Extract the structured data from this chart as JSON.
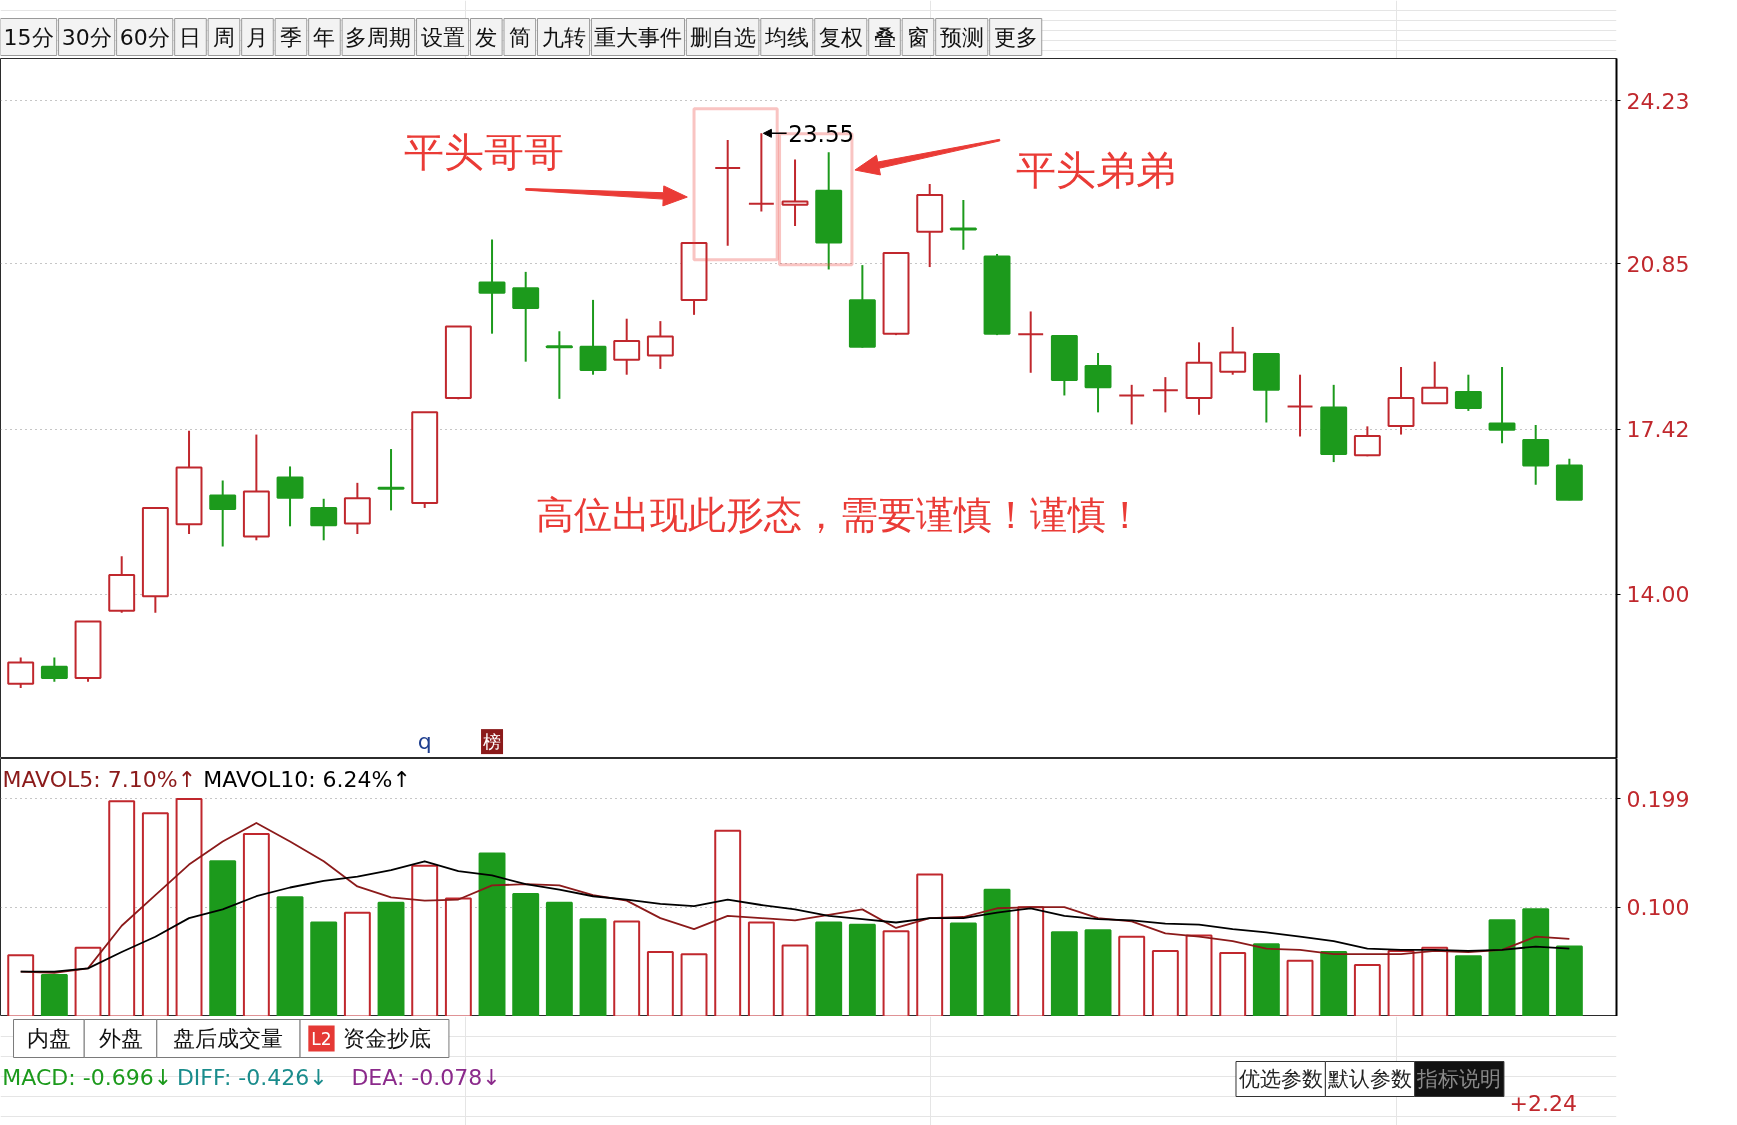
{
  "chart_data": [
    {
      "type": "other",
      "annotations": [
        "15分",
        "30分",
        "60分",
        "日",
        "周",
        "月",
        "季",
        "年",
        "多周期",
        "设置",
        "发",
        "简",
        "九转",
        "重大事件",
        "删自选",
        "均线",
        "复权",
        "叠",
        "窗",
        "预测",
        "更多"
      ]
    },
    {
      "type": "candlestick",
      "categories": [
        null,
        null,
        null,
        null,
        null,
        null,
        null,
        null,
        null,
        null,
        null,
        null,
        null,
        null,
        null,
        null,
        null,
        null,
        null,
        null,
        null,
        null,
        null,
        null,
        null,
        null,
        null,
        null,
        null,
        null,
        null,
        null,
        null,
        null,
        null,
        null,
        null,
        null,
        null,
        null,
        null,
        null,
        null,
        null,
        null,
        null,
        null
      ],
      "ohlc": [
        [
          12.15,
          12.69,
          12.06,
          12.59
        ],
        [
          12.5,
          12.69,
          12.19,
          12.27
        ],
        [
          12.27,
          13.44,
          12.19,
          13.44
        ],
        [
          13.66,
          14.79,
          13.62,
          14.4
        ],
        [
          13.96,
          15.79,
          13.62,
          15.79
        ],
        [
          15.45,
          17.39,
          15.25,
          16.63
        ],
        [
          16.05,
          16.36,
          14.99,
          15.77
        ],
        [
          15.2,
          17.31,
          15.12,
          16.13
        ],
        [
          16.42,
          16.65,
          15.41,
          16.0
        ],
        [
          15.79,
          15.98,
          15.12,
          15.43
        ],
        [
          15.47,
          16.31,
          15.25,
          15.99
        ],
        [
          16.21,
          17.01,
          15.74,
          16.19
        ],
        [
          15.89,
          17.77,
          15.79,
          17.77
        ],
        [
          18.07,
          19.55,
          18.04,
          19.55
        ],
        [
          20.46,
          21.35,
          19.4,
          20.25
        ],
        [
          20.34,
          20.68,
          18.82,
          19.93
        ],
        [
          19.14,
          19.45,
          18.05,
          19.12
        ],
        [
          19.13,
          20.1,
          18.55,
          18.65
        ],
        [
          18.86,
          19.71,
          18.55,
          19.25
        ],
        [
          18.95,
          19.66,
          18.67,
          19.34
        ],
        [
          20.1,
          21.28,
          19.79,
          21.28
        ],
        [
          22.83,
          23.41,
          21.22,
          22.83
        ],
        [
          22.09,
          23.55,
          21.93,
          22.09
        ],
        [
          22.07,
          23.01,
          21.63,
          22.14
        ],
        [
          22.36,
          23.16,
          20.73,
          21.29
        ],
        [
          20.09,
          20.82,
          19.11,
          19.13
        ],
        [
          19.4,
          21.07,
          19.37,
          21.07
        ],
        [
          21.51,
          22.5,
          20.78,
          22.27
        ],
        [
          21.58,
          22.17,
          21.14,
          21.56
        ],
        [
          21.0,
          21.05,
          19.37,
          19.4
        ],
        [
          19.39,
          19.86,
          18.59,
          19.39
        ],
        [
          19.35,
          19.35,
          18.12,
          18.44
        ],
        [
          18.73,
          19.0,
          17.77,
          18.29
        ],
        [
          18.12,
          18.34,
          17.52,
          18.12
        ],
        [
          18.23,
          18.5,
          17.77,
          18.23
        ],
        [
          18.07,
          19.22,
          17.72,
          18.8
        ],
        [
          18.61,
          19.54,
          18.55,
          19.01
        ],
        [
          18.98,
          18.98,
          17.56,
          18.24
        ],
        [
          17.89,
          18.55,
          17.27,
          17.89
        ],
        [
          17.87,
          18.34,
          16.74,
          16.91
        ],
        [
          16.88,
          17.48,
          16.86,
          17.28
        ],
        [
          17.49,
          18.71,
          17.31,
          18.07
        ],
        [
          17.96,
          18.82,
          17.95,
          18.28
        ],
        [
          18.19,
          18.55,
          17.8,
          17.86
        ],
        [
          17.54,
          18.71,
          17.13,
          17.41
        ],
        [
          17.2,
          17.51,
          16.27,
          16.67
        ],
        [
          16.67,
          16.81,
          15.95,
          15.96
        ]
      ],
      "colors": [
        "#c0272d",
        "#1c9a1c",
        "#c0272d",
        "#c0272d",
        "#c0272d",
        "#c0272d",
        "#1c9a1c",
        "#c0272d",
        "#1c9a1c",
        "#1c9a1c",
        "#c0272d",
        "#1c9a1c",
        "#c0272d",
        "#c0272d",
        "#1c9a1c",
        "#1c9a1c",
        "#1c9a1c",
        "#1c9a1c",
        "#c0272d",
        "#c0272d",
        "#c0272d",
        "#c0272d",
        "#c0272d",
        "#c0272d",
        "#1c9a1c",
        "#1c9a1c",
        "#c0272d",
        "#c0272d",
        "#1c9a1c",
        "#1c9a1c",
        "#c0272d",
        "#1c9a1c",
        "#1c9a1c",
        "#c0272d",
        "#c0272d",
        "#c0272d",
        "#c0272d",
        "#1c9a1c",
        "#c0272d",
        "#1c9a1c",
        "#c0272d",
        "#c0272d",
        "#c0272d",
        "#1c9a1c",
        "#1c9a1c",
        "#1c9a1c",
        "#1c9a1c"
      ],
      "ylim": [
        10.6,
        25.1
      ],
      "yticks": [
        {
          "value": 14,
          "label": "14.00"
        },
        17.42,
        20.85,
        24.23
      ],
      "grid": "y",
      "tick_labels": "y",
      "annotations": [
        "平头哥哥",
        "平头弟弟",
        "高位出现此形态，需要谨慎！谨慎！",
        "23.55",
        "q",
        "榜"
      ]
    },
    {
      "type": "bar",
      "categories": [
        null,
        null,
        null,
        null,
        null,
        null,
        null,
        null,
        null,
        null,
        null,
        null,
        null,
        null,
        null,
        null,
        null,
        null,
        null,
        null,
        null,
        null,
        null,
        null,
        null,
        null,
        null,
        null,
        null,
        null,
        null,
        null,
        null,
        null,
        null,
        null,
        null,
        null,
        null,
        null,
        null,
        null,
        null,
        null,
        null,
        null,
        null
      ],
      "series": [
        {
          "type": "bar",
          "colors": [
            "#c0272d",
            "#1c9a1c",
            "#c0272d",
            "#c0272d",
            "#c0272d",
            "#c0272d",
            "#1c9a1c",
            "#c0272d",
            "#1c9a1c",
            "#1c9a1c",
            "#c0272d",
            "#1c9a1c",
            "#c0272d",
            "#c0272d",
            "#1c9a1c",
            "#1c9a1c",
            "#1c9a1c",
            "#1c9a1c",
            "#c0272d",
            "#c0272d",
            "#c0272d",
            "#c0272d",
            "#c0272d",
            "#c0272d",
            "#1c9a1c",
            "#1c9a1c",
            "#c0272d",
            "#c0272d",
            "#1c9a1c",
            "#1c9a1c",
            "#c0272d",
            "#1c9a1c",
            "#1c9a1c",
            "#c0272d",
            "#c0272d",
            "#c0272d",
            "#c0272d",
            "#1c9a1c",
            "#c0272d",
            "#1c9a1c",
            "#c0272d",
            "#c0272d",
            "#c0272d",
            "#1c9a1c",
            "#1c9a1c",
            "#1c9a1c",
            "#1c9a1c"
          ],
          "values": [
            0.056,
            0.038,
            0.063,
            0.197,
            0.186,
            0.199,
            0.142,
            0.167,
            0.109,
            0.086,
            0.095,
            0.104,
            0.138,
            0.108,
            0.149,
            0.112,
            0.104,
            0.089,
            0.087,
            0.059,
            0.057,
            0.17,
            0.086,
            0.065,
            0.086,
            0.084,
            0.078,
            0.13,
            0.085,
            0.116,
            0.1,
            0.077,
            0.079,
            0.073,
            0.06,
            0.074,
            0.058,
            0.066,
            0.051,
            0.059,
            0.047,
            0.06,
            0.063,
            0.055,
            0.088,
            0.098,
            0.064
          ]
        },
        {
          "type": "line",
          "name": "MAVOL5: 7.10%↑",
          "color": "#8b1a1a",
          "values": [
            0.041,
            0.04,
            0.044,
            0.083,
            0.111,
            0.139,
            0.16,
            0.177,
            0.16,
            0.142,
            0.119,
            0.109,
            0.106,
            0.107,
            0.12,
            0.121,
            0.12,
            0.111,
            0.106,
            0.09,
            0.08,
            0.092,
            0.09,
            0.088,
            0.093,
            0.098,
            0.081,
            0.09,
            0.091,
            0.099,
            0.1,
            0.1,
            0.09,
            0.087,
            0.076,
            0.073,
            0.069,
            0.062,
            0.061,
            0.057,
            0.057,
            0.057,
            0.06,
            0.059,
            0.061,
            0.073,
            0.071
          ]
        },
        {
          "type": "line",
          "name": "MAVOL10: 6.24%↑",
          "color": "#000000",
          "values": [
            0.041,
            0.041,
            0.044,
            0.059,
            0.073,
            0.09,
            0.098,
            0.11,
            0.118,
            0.124,
            0.128,
            0.134,
            0.142,
            0.133,
            0.129,
            0.121,
            0.116,
            0.11,
            0.107,
            0.103,
            0.101,
            0.107,
            0.102,
            0.098,
            0.092,
            0.089,
            0.086,
            0.09,
            0.09,
            0.095,
            0.099,
            0.092,
            0.089,
            0.088,
            0.085,
            0.084,
            0.08,
            0.077,
            0.073,
            0.069,
            0.062,
            0.061,
            0.061,
            0.06,
            0.061,
            0.064,
            0.062
          ]
        }
      ],
      "ylim": [
        0,
        0.236
      ],
      "yticks": [
        {
          "value": 0.1,
          "label": "0.100"
        },
        {
          "value": 0.199,
          "label": "0.199"
        }
      ],
      "grid": "y",
      "tick_labels": "y",
      "legend": "top left"
    },
    {
      "type": "other",
      "annotations": [
        "内盘",
        "外盘",
        "盘后成交量",
        "L2",
        "资金抄底",
        "MACD: -0.696↓",
        "DIFF: -0.426↓",
        "DEA: -0.078↓",
        "优选参数",
        "默认参数",
        "指标说明",
        "+2.24"
      ]
    }
  ]
}
